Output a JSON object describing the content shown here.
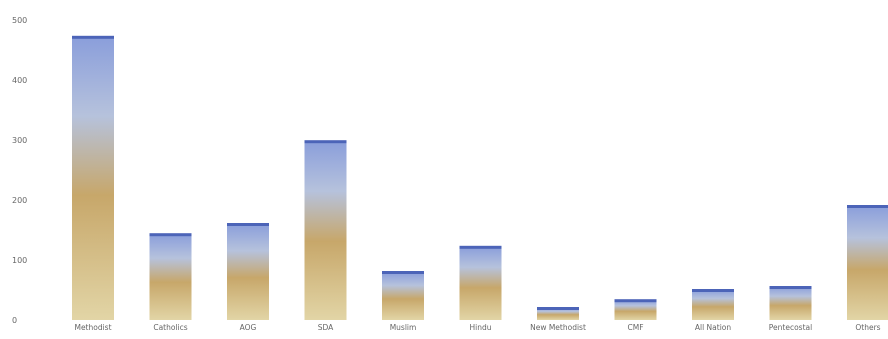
{
  "chart_data": {
    "type": "bar",
    "title": "",
    "xlabel": "",
    "ylabel": "",
    "ylim": [
      0,
      500
    ],
    "yticks": [
      0,
      100,
      200,
      300,
      400,
      500
    ],
    "grid": false,
    "legend": "none",
    "categories": [
      "Methodist",
      "Catholics",
      "AOG",
      "SDA",
      "Muslim",
      "Hindu",
      "New Methodist",
      "CMF",
      "All Nation",
      "Pentecostal",
      "Others"
    ],
    "values": [
      472,
      143,
      160,
      298,
      80,
      122,
      20,
      33,
      50,
      55,
      190
    ]
  },
  "colors": {
    "bar_top": "#8a9edb",
    "bar_upper": "#b6c2dc",
    "bar_mid": "#c7a76a",
    "bar_lower": "#e2d5a6",
    "bar_cap": "#4c64b8",
    "tick_text": "#666666"
  }
}
